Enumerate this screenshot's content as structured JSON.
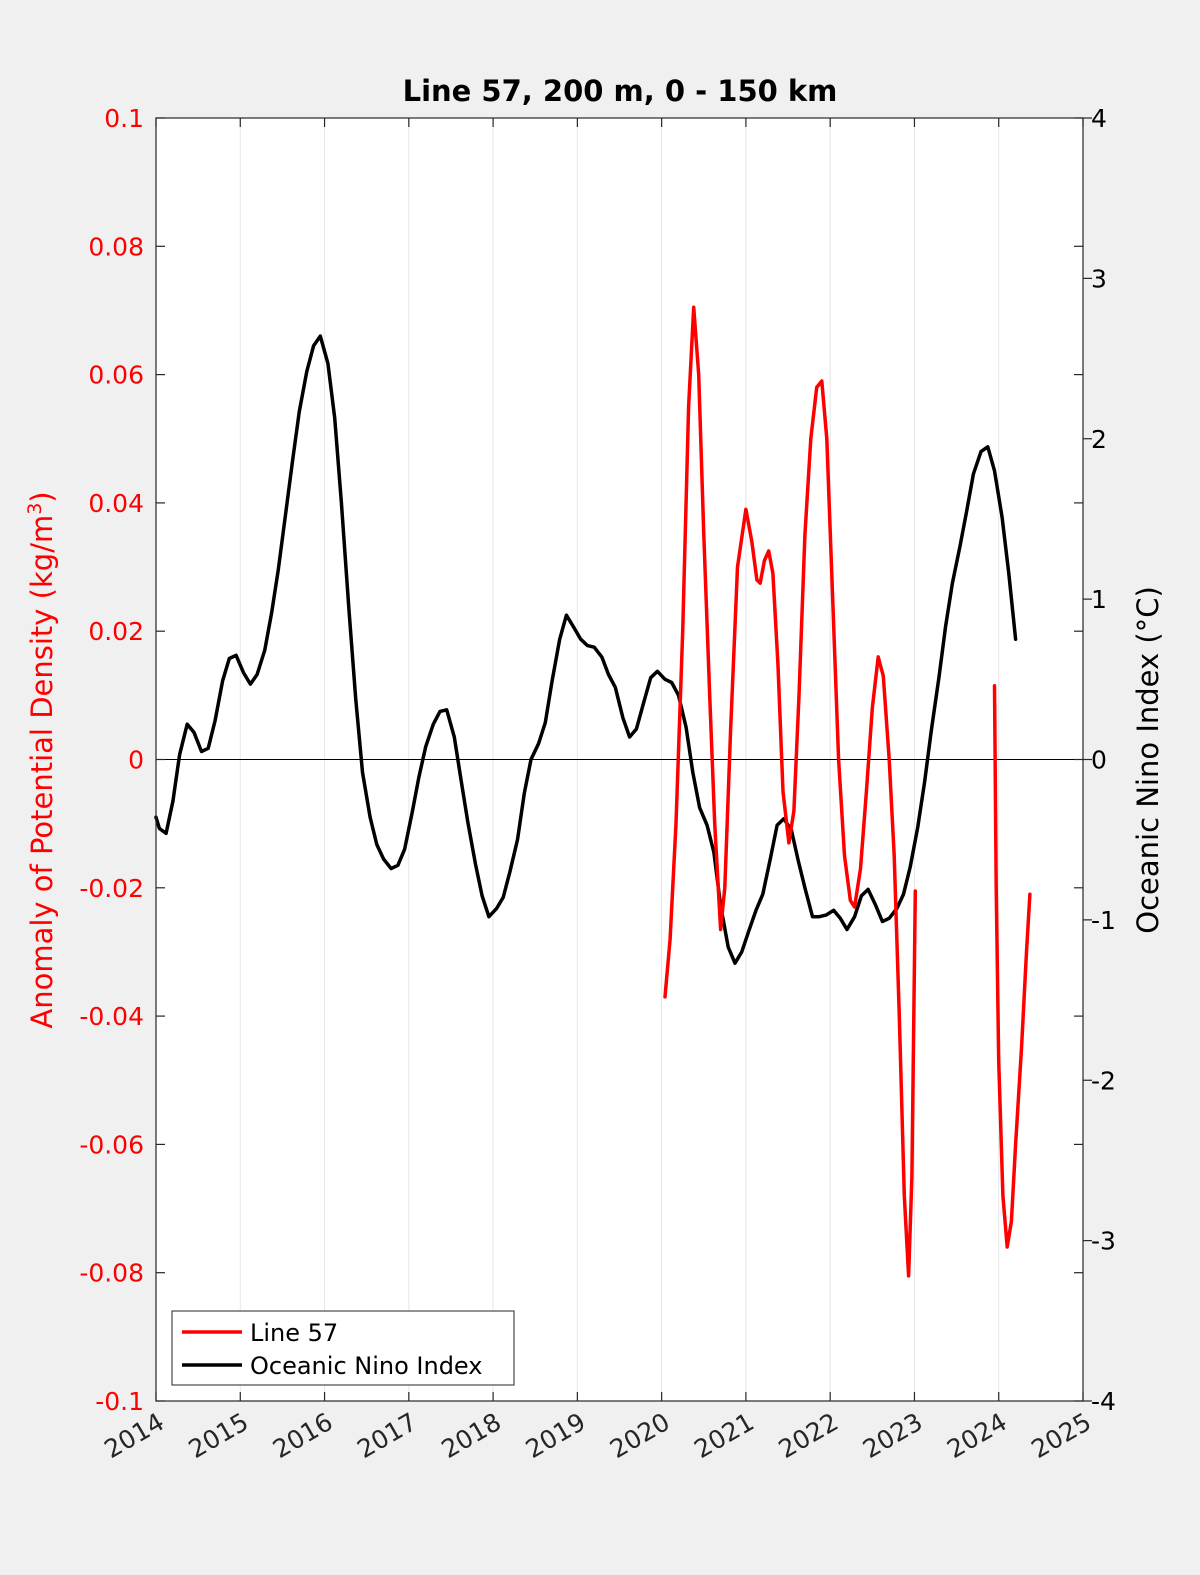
{
  "chart_data": {
    "type": "line",
    "title": "Line 57, 200 m, 0 - 150 km",
    "xlabel": "",
    "ylabel_left": "Anomaly of Potential Density (kg/m3)",
    "ylabel_left_base": "Anomaly of Potential Density (kg/m",
    "ylabel_left_sup": "3",
    "ylabel_left_end": ")",
    "ylabel_right": "Oceanic Nino Index (°C)",
    "xlim": [
      2014,
      2025
    ],
    "ylim_left": [
      -0.1,
      0.1
    ],
    "ylim_right": [
      -4,
      4
    ],
    "xticks": [
      "2014",
      "2015",
      "2016",
      "2017",
      "2018",
      "2019",
      "2020",
      "2021",
      "2022",
      "2023",
      "2024",
      "2025"
    ],
    "yticks_left": [
      "0.1",
      "0.08",
      "0.06",
      "0.04",
      "0.02",
      "0",
      "-0.02",
      "-0.04",
      "-0.06",
      "-0.08",
      "-0.1"
    ],
    "yticks_right": [
      "4",
      "3",
      "2",
      "1",
      "0",
      "-1",
      "-2",
      "-3",
      "-4"
    ],
    "grid": "x",
    "zero_line": true,
    "legend_position": "bottom-left",
    "colors": {
      "left_axis": "#ff0000",
      "right_axis": "#000000"
    },
    "series": [
      {
        "name": "Line 57",
        "axis": "left",
        "color": "#ff0000",
        "segments": [
          [
            [
              2020.04,
              -0.037
            ],
            [
              2020.1,
              -0.028
            ],
            [
              2020.17,
              -0.01
            ],
            [
              2020.25,
              0.02
            ],
            [
              2020.32,
              0.055
            ],
            [
              2020.38,
              0.0705
            ],
            [
              2020.44,
              0.06
            ],
            [
              2020.5,
              0.035
            ],
            [
              2020.57,
              0.01
            ],
            [
              2020.63,
              -0.01
            ],
            [
              2020.7,
              -0.0265
            ],
            [
              2020.75,
              -0.02
            ],
            [
              2020.82,
              0.005
            ],
            [
              2020.9,
              0.03
            ],
            [
              2021.0,
              0.039
            ],
            [
              2021.07,
              0.034
            ],
            [
              2021.13,
              0.028
            ],
            [
              2021.17,
              0.0275
            ],
            [
              2021.22,
              0.031
            ],
            [
              2021.27,
              0.0325
            ],
            [
              2021.32,
              0.029
            ],
            [
              2021.38,
              0.015
            ],
            [
              2021.44,
              -0.005
            ],
            [
              2021.51,
              -0.013
            ],
            [
              2021.57,
              -0.008
            ],
            [
              2021.63,
              0.01
            ],
            [
              2021.7,
              0.035
            ],
            [
              2021.77,
              0.05
            ],
            [
              2021.84,
              0.058
            ],
            [
              2021.9,
              0.059
            ],
            [
              2021.96,
              0.05
            ],
            [
              2022.03,
              0.025
            ],
            [
              2022.1,
              0.0
            ],
            [
              2022.17,
              -0.015
            ],
            [
              2022.24,
              -0.022
            ],
            [
              2022.29,
              -0.023
            ],
            [
              2022.36,
              -0.017
            ],
            [
              2022.43,
              -0.005
            ],
            [
              2022.5,
              0.008
            ],
            [
              2022.57,
              0.016
            ],
            [
              2022.63,
              0.013
            ],
            [
              2022.7,
              0.0
            ],
            [
              2022.76,
              -0.015
            ],
            [
              2022.82,
              -0.04
            ],
            [
              2022.88,
              -0.068
            ],
            [
              2022.93,
              -0.0805
            ],
            [
              2022.97,
              -0.065
            ],
            [
              2023.01,
              -0.0205
            ]
          ],
          [
            [
              2023.95,
              0.0115
            ],
            [
              2023.97,
              -0.02
            ],
            [
              2024.0,
              -0.047
            ],
            [
              2024.05,
              -0.068
            ],
            [
              2024.1,
              -0.076
            ],
            [
              2024.15,
              -0.072
            ],
            [
              2024.2,
              -0.06
            ],
            [
              2024.27,
              -0.045
            ],
            [
              2024.33,
              -0.03
            ],
            [
              2024.37,
              -0.021
            ]
          ]
        ]
      },
      {
        "name": "Oceanic Nino Index",
        "axis": "right",
        "color": "#000000",
        "segments": [
          [
            [
              2014.0,
              -0.36
            ],
            [
              2014.04,
              -0.43
            ],
            [
              2014.12,
              -0.46
            ],
            [
              2014.2,
              -0.26
            ],
            [
              2014.28,
              0.03
            ],
            [
              2014.37,
              0.22
            ],
            [
              2014.45,
              0.17
            ],
            [
              2014.54,
              0.05
            ],
            [
              2014.62,
              0.07
            ],
            [
              2014.7,
              0.24
            ],
            [
              2014.79,
              0.49
            ],
            [
              2014.87,
              0.63
            ],
            [
              2014.95,
              0.65
            ],
            [
              2015.04,
              0.54
            ],
            [
              2015.12,
              0.47
            ],
            [
              2015.2,
              0.53
            ],
            [
              2015.29,
              0.68
            ],
            [
              2015.37,
              0.91
            ],
            [
              2015.45,
              1.18
            ],
            [
              2015.54,
              1.54
            ],
            [
              2015.62,
              1.86
            ],
            [
              2015.7,
              2.17
            ],
            [
              2015.79,
              2.42
            ],
            [
              2015.87,
              2.58
            ],
            [
              2015.95,
              2.64
            ],
            [
              2016.04,
              2.47
            ],
            [
              2016.12,
              2.13
            ],
            [
              2016.2,
              1.6
            ],
            [
              2016.29,
              0.93
            ],
            [
              2016.37,
              0.38
            ],
            [
              2016.45,
              -0.08
            ],
            [
              2016.54,
              -0.36
            ],
            [
              2016.62,
              -0.53
            ],
            [
              2016.7,
              -0.62
            ],
            [
              2016.79,
              -0.68
            ],
            [
              2016.87,
              -0.66
            ],
            [
              2016.95,
              -0.56
            ],
            [
              2017.04,
              -0.33
            ],
            [
              2017.12,
              -0.11
            ],
            [
              2017.2,
              0.08
            ],
            [
              2017.29,
              0.22
            ],
            [
              2017.37,
              0.3
            ],
            [
              2017.45,
              0.31
            ],
            [
              2017.54,
              0.14
            ],
            [
              2017.62,
              -0.13
            ],
            [
              2017.7,
              -0.39
            ],
            [
              2017.79,
              -0.65
            ],
            [
              2017.87,
              -0.85
            ],
            [
              2017.95,
              -0.98
            ],
            [
              2018.04,
              -0.93
            ],
            [
              2018.12,
              -0.86
            ],
            [
              2018.2,
              -0.7
            ],
            [
              2018.29,
              -0.5
            ],
            [
              2018.37,
              -0.21
            ],
            [
              2018.45,
              0.0
            ],
            [
              2018.54,
              0.1
            ],
            [
              2018.62,
              0.23
            ],
            [
              2018.7,
              0.49
            ],
            [
              2018.79,
              0.75
            ],
            [
              2018.87,
              0.9
            ],
            [
              2018.95,
              0.83
            ],
            [
              2019.04,
              0.75
            ],
            [
              2019.12,
              0.71
            ],
            [
              2019.2,
              0.7
            ],
            [
              2019.29,
              0.64
            ],
            [
              2019.37,
              0.53
            ],
            [
              2019.45,
              0.45
            ],
            [
              2019.54,
              0.26
            ],
            [
              2019.62,
              0.14
            ],
            [
              2019.7,
              0.19
            ],
            [
              2019.79,
              0.36
            ],
            [
              2019.87,
              0.51
            ],
            [
              2019.95,
              0.55
            ],
            [
              2020.04,
              0.5
            ],
            [
              2020.12,
              0.48
            ],
            [
              2020.2,
              0.4
            ],
            [
              2020.29,
              0.2
            ],
            [
              2020.37,
              -0.08
            ],
            [
              2020.45,
              -0.3
            ],
            [
              2020.54,
              -0.41
            ],
            [
              2020.62,
              -0.58
            ],
            [
              2020.7,
              -0.91
            ],
            [
              2020.79,
              -1.17
            ],
            [
              2020.87,
              -1.27
            ],
            [
              2020.95,
              -1.2
            ],
            [
              2021.04,
              -1.06
            ],
            [
              2021.12,
              -0.94
            ],
            [
              2021.2,
              -0.84
            ],
            [
              2021.29,
              -0.62
            ],
            [
              2021.37,
              -0.41
            ],
            [
              2021.45,
              -0.37
            ],
            [
              2021.54,
              -0.44
            ],
            [
              2021.62,
              -0.63
            ],
            [
              2021.7,
              -0.8
            ],
            [
              2021.79,
              -0.98
            ],
            [
              2021.87,
              -0.98
            ],
            [
              2021.95,
              -0.97
            ],
            [
              2022.04,
              -0.94
            ],
            [
              2022.12,
              -0.99
            ],
            [
              2022.2,
              -1.06
            ],
            [
              2022.29,
              -0.98
            ],
            [
              2022.37,
              -0.85
            ],
            [
              2022.45,
              -0.81
            ],
            [
              2022.54,
              -0.91
            ],
            [
              2022.62,
              -1.01
            ],
            [
              2022.7,
              -0.99
            ],
            [
              2022.79,
              -0.93
            ],
            [
              2022.87,
              -0.84
            ],
            [
              2022.95,
              -0.67
            ],
            [
              2023.04,
              -0.42
            ],
            [
              2023.12,
              -0.14
            ],
            [
              2023.2,
              0.18
            ],
            [
              2023.29,
              0.51
            ],
            [
              2023.37,
              0.83
            ],
            [
              2023.45,
              1.1
            ],
            [
              2023.54,
              1.33
            ],
            [
              2023.62,
              1.55
            ],
            [
              2023.7,
              1.78
            ],
            [
              2023.79,
              1.92
            ],
            [
              2023.87,
              1.95
            ],
            [
              2023.95,
              1.8
            ],
            [
              2024.04,
              1.51
            ],
            [
              2024.12,
              1.16
            ],
            [
              2024.2,
              0.75
            ]
          ]
        ]
      }
    ]
  }
}
